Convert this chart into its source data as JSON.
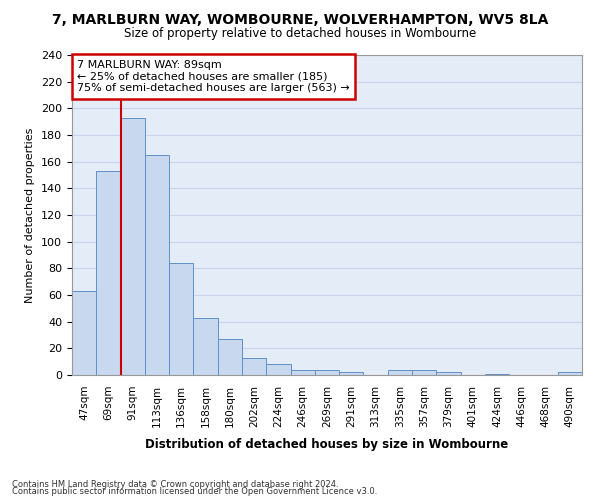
{
  "title_line1": "7, MARLBURN WAY, WOMBOURNE, WOLVERHAMPTON, WV5 8LA",
  "title_line2": "Size of property relative to detached houses in Wombourne",
  "xlabel": "Distribution of detached houses by size in Wombourne",
  "ylabel": "Number of detached properties",
  "footnote1": "Contains HM Land Registry data © Crown copyright and database right 2024.",
  "footnote2": "Contains public sector information licensed under the Open Government Licence v3.0.",
  "bar_color": "#C8D8EE",
  "bar_edge_color": "#6090C8",
  "annotation_box_color": "#CC0000",
  "annotation_line1": "7 MARLBURN WAY: 89sqm",
  "annotation_line2": "← 25% of detached houses are smaller (185)",
  "annotation_line3": "75% of semi-detached houses are larger (563) →",
  "vline_color": "#CC0000",
  "categories": [
    "47sqm",
    "69sqm",
    "91sqm",
    "113sqm",
    "136sqm",
    "158sqm",
    "180sqm",
    "202sqm",
    "224sqm",
    "246sqm",
    "269sqm",
    "291sqm",
    "313sqm",
    "335sqm",
    "357sqm",
    "379sqm",
    "401sqm",
    "424sqm",
    "446sqm",
    "468sqm",
    "490sqm"
  ],
  "values": [
    63,
    153,
    193,
    165,
    84,
    43,
    27,
    13,
    8,
    4,
    4,
    2,
    0,
    4,
    4,
    2,
    0,
    1,
    0,
    0,
    2
  ],
  "ylim": [
    0,
    240
  ],
  "yticks": [
    0,
    20,
    40,
    60,
    80,
    100,
    120,
    140,
    160,
    180,
    200,
    220,
    240
  ],
  "grid_color": "#C8D4E8",
  "bg_color": "#E4ECF8",
  "bar_width": 1.0,
  "vline_index": 2
}
